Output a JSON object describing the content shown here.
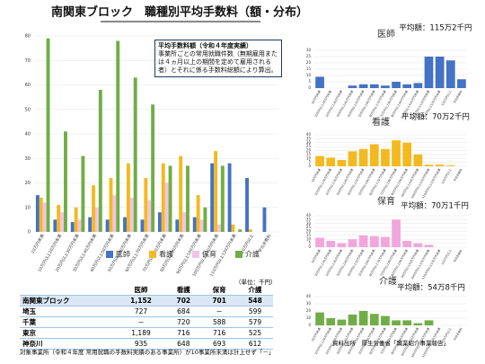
{
  "title": "南関東ブロック　職種別平均手数料（額・分布）",
  "chart_data": [
    {
      "type": "bar",
      "annotation": {
        "title": "平均手数料額（令和４年度実績）",
        "text": "事業所ごとの常用就職件数（無期雇用または４ヵ月以上の期間を定めて雇用される者）とそれに係る手数料総額により算出。"
      },
      "categories": [
        "10万円未満",
        "10万円以上20万円未満",
        "20万円以上30万円未満",
        "30万円以上40万円未満",
        "40万円以上50万円未満",
        "50万円以上60万円未満",
        "60万円以上70万円未満",
        "70万円以上80万円未満",
        "80万円以上90万円未満",
        "90万円以上100万円未満",
        "100万円以上110万円未満",
        "110万円以上120万円未満",
        "120万円以上",
        "平均手数料"
      ],
      "series": [
        {
          "name": "医師",
          "color": "#4472c4",
          "values": [
            15,
            5,
            4,
            6,
            5,
            6,
            5,
            8,
            5,
            6,
            28,
            28,
            22,
            10
          ]
        },
        {
          "name": "看護",
          "color": "#f4b920",
          "values": [
            14,
            11,
            10,
            19,
            22,
            28,
            22,
            28,
            31,
            15,
            33,
            3,
            1,
            null
          ]
        },
        {
          "name": "保育",
          "color": "#f2c4e4",
          "values": [
            12,
            8,
            5,
            10,
            15,
            14,
            13,
            20,
            8,
            5,
            3,
            0,
            0,
            null
          ]
        },
        {
          "name": "介護",
          "color": "#70ad47",
          "values": [
            79,
            41,
            31,
            58,
            78,
            63,
            52,
            27,
            27,
            10,
            27,
            1,
            0,
            null
          ]
        }
      ],
      "ylim": [
        0,
        80
      ],
      "yticks": [
        0,
        10,
        20,
        30,
        40,
        50,
        60,
        70,
        80
      ],
      "grid": true,
      "legend": "bottom"
    },
    {
      "type": "bar",
      "title": "医師",
      "subtitle": "平均額：115万2千円",
      "color": "#4472c4",
      "categories": [
        "10万円未満",
        "10万円以上20万円未満",
        "20万円以上30万円未満",
        "30万円以上40万円未満",
        "40万円以上50万円未満",
        "50万円以上60万円未満",
        "60万円以上70万円未満",
        "70万円以上80万円未満",
        "80万円以上90万円未満",
        "90万円以上100万円未満",
        "100万円以上110万円未満",
        "110万円以上120万円未満",
        "120万円以上",
        "平均手数料"
      ],
      "values": [
        9,
        0,
        0,
        2,
        3,
        3,
        2,
        5,
        3,
        4,
        25,
        25,
        22,
        7
      ],
      "ylim": [
        0,
        30
      ],
      "yticks": [
        0,
        5,
        10,
        15,
        20,
        25,
        30
      ],
      "grid": true
    },
    {
      "type": "bar",
      "title": "看護",
      "subtitle": "平均額：70万2千円",
      "color": "#f4b920",
      "categories": [
        "10万円未満",
        "10万円以上20万円未満",
        "20万円以上30万円未満",
        "30万円以上40万円未満",
        "40万円以上50万円未満",
        "50万円以上60万円未満",
        "60万円以上70万円未満",
        "70万円以上80万円未満",
        "80万円以上90万円未満",
        "90万円以上100万円未満",
        "100万円以上110万円未満",
        "110万円以上120万円未満",
        "120万円以上",
        "平均手数料"
      ],
      "values": [
        13,
        11,
        8,
        19,
        22,
        28,
        22,
        33,
        30,
        15,
        2,
        2,
        1,
        0
      ],
      "ylim": [
        0,
        40
      ],
      "yticks": [
        0,
        5,
        10,
        15,
        20,
        25,
        30,
        35,
        40
      ],
      "grid": true
    },
    {
      "type": "bar",
      "title": "保育",
      "subtitle": "平均額：70万1千円",
      "color": "#f2a6dc",
      "categories": [
        "10万円未満",
        "10万円以上20万円未満",
        "20万円以上30万円未満",
        "30万円以上40万円未満",
        "40万円以上50万円未満",
        "50万円以上60万円未満",
        "60万円以上70万円未満",
        "70万円以上80万円未満",
        "80万円以上90万円未満",
        "90万円以上100万円未満",
        "100万円以上110万円未満",
        "110万円以上120万円未満",
        "120万円以上",
        "平均手数料"
      ],
      "values": [
        12,
        8,
        5,
        10,
        15,
        14,
        13,
        35,
        8,
        5,
        3,
        0,
        0,
        0
      ],
      "ylim": [
        0,
        40
      ],
      "yticks": [
        0,
        5,
        10,
        15,
        20,
        25,
        30,
        35,
        40
      ],
      "grid": true
    },
    {
      "type": "bar",
      "title": "介護",
      "subtitle": "平均額：54万8千円",
      "color": "#70ad47",
      "categories": [
        "10万円未満",
        "10万円以上20万円未満",
        "20万円以上30万円未満",
        "30万円以上40万円未満",
        "40万円以上50万円未満",
        "50万円以上60万円未満",
        "60万円以上70万円未満",
        "70万円以上80万円未満",
        "80万円以上90万円未満",
        "90万円以上100万円未満",
        "100万円以上110万円未満",
        "110万円以上120万円未満",
        "120万円以上",
        "平均手数料"
      ],
      "values": [
        18,
        10,
        8,
        15,
        20,
        16,
        13,
        7,
        7,
        3,
        7,
        0,
        0,
        0
      ],
      "ylim": [
        0,
        40
      ],
      "yticks": [
        0,
        10,
        20,
        30,
        40
      ],
      "grid": true
    }
  ],
  "table": {
    "unit": "（単位：千円）",
    "header": [
      "医師",
      "看護",
      "保育",
      "介護"
    ],
    "rows": [
      {
        "label": "南関東ブロック",
        "cells": [
          "1,152",
          "702",
          "701",
          "548"
        ]
      },
      {
        "label": "埼玉",
        "cells": [
          "727",
          "684",
          "－",
          "599"
        ]
      },
      {
        "label": "千葉",
        "cells": [
          "－",
          "720",
          "588",
          "579"
        ]
      },
      {
        "label": "東京",
        "cells": [
          "1,189",
          "716",
          "716",
          "525"
        ]
      },
      {
        "label": "神奈川",
        "cells": [
          "935",
          "648",
          "693",
          "612"
        ]
      }
    ],
    "note": "対象事業所（令和４年度 常用就職の手数料実績のある事業所）が10事業所未満は計上せず「－」"
  },
  "source": "資料出所　厚生労働省「職業紹介事業報告」"
}
